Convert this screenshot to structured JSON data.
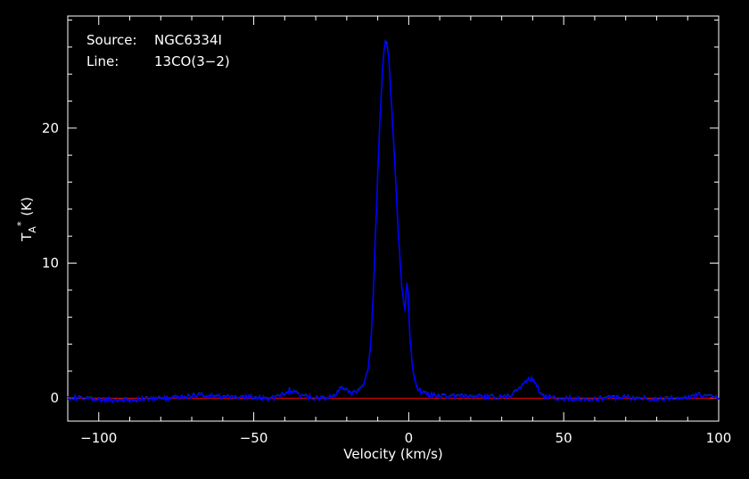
{
  "chart_data": {
    "type": "line",
    "annotations": {
      "source_key": "Source:",
      "source_value": "NGC6334I",
      "line_key": "Line:",
      "line_value": "13CO(3−2)"
    },
    "xlabel": "Velocity (km/s)",
    "ylabel": "T",
    "ylabel_sub": "A",
    "ylabel_sup": "*",
    "ylabel_unit": "(K)",
    "xlim": [
      -110,
      100
    ],
    "ylim": [
      -1.7,
      28.3
    ],
    "xticks": [
      {
        "value": -100,
        "label": "−100"
      },
      {
        "value": -50,
        "label": "−50"
      },
      {
        "value": 0,
        "label": "0"
      },
      {
        "value": 50,
        "label": "50"
      },
      {
        "value": 100,
        "label": "100"
      }
    ],
    "xminor_step": 10,
    "yticks": [
      {
        "value": 0,
        "label": "0"
      },
      {
        "value": 10,
        "label": "10"
      },
      {
        "value": 20,
        "label": "20"
      }
    ],
    "yminor_step": 2,
    "grid": false,
    "baseline": {
      "y": 0,
      "color": "#ff0000"
    },
    "series": [
      {
        "color": "#0000ff",
        "noise_color": "#00ff00",
        "x": [
          -110,
          -100,
          -90,
          -80,
          -72,
          -68,
          -60,
          -50,
          -45,
          -40,
          -38.5,
          -37,
          -35,
          -32,
          -28,
          -25,
          -23,
          -21.5,
          -20.5,
          -19.5,
          -18,
          -16,
          -15,
          -14,
          -13,
          -12.5,
          -12,
          -11.5,
          -11,
          -10.5,
          -10,
          -9.5,
          -9,
          -8.5,
          -8,
          -7.5,
          -7,
          -6.5,
          -6,
          -5.5,
          -5,
          -4.5,
          -4,
          -3.5,
          -3,
          -2.6,
          -2.2,
          -1.8,
          -1.4,
          -1.2,
          -1.0,
          -0.6,
          -0.2,
          0,
          0.3,
          0.6,
          1,
          1.5,
          2,
          2.5,
          3,
          4,
          5,
          7,
          10,
          15,
          20,
          25,
          30,
          33,
          35,
          37,
          38,
          39,
          40,
          41,
          42,
          43,
          45,
          50,
          60,
          70,
          80,
          90,
          93,
          95,
          100
        ],
        "y": [
          0.1,
          -0.1,
          -0.1,
          0.0,
          0.1,
          0.3,
          0.1,
          0.1,
          0.0,
          0.3,
          0.6,
          0.5,
          0.2,
          0.1,
          0.0,
          0.1,
          0.4,
          0.9,
          0.6,
          0.5,
          0.4,
          0.6,
          0.9,
          1.5,
          2.4,
          3.5,
          5.0,
          7.5,
          10.5,
          13.5,
          16.5,
          19.5,
          22.0,
          24.2,
          25.8,
          26.5,
          26.2,
          25.2,
          23.5,
          21.5,
          19.5,
          17.3,
          15.2,
          13.0,
          11.0,
          9.5,
          8.2,
          7.5,
          6.9,
          6.6,
          7.2,
          8.6,
          7.8,
          6.5,
          5.0,
          3.9,
          2.8,
          2.0,
          1.4,
          1.0,
          0.7,
          0.5,
          0.35,
          0.25,
          0.2,
          0.15,
          0.2,
          0.1,
          0.1,
          0.2,
          0.6,
          1.1,
          1.3,
          1.5,
          1.4,
          1.1,
          0.6,
          0.2,
          0.1,
          0.0,
          0.0,
          0.1,
          0.0,
          0.1,
          0.3,
          0.2,
          0.0
        ]
      }
    ]
  }
}
